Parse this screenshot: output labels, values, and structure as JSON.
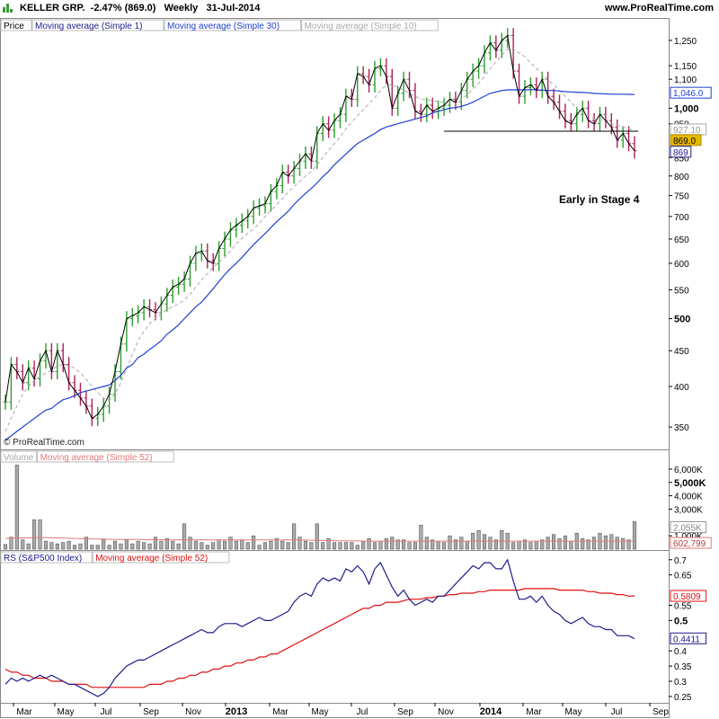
{
  "header": {
    "ticker": "KELLER GRP.",
    "change": "-2.47% (869.0)",
    "period": "Weekly",
    "date": "31-Jul-2014",
    "site": "www.ProRealTime.com"
  },
  "annotation": "Early in Stage 4",
  "watermark": "© ProRealTime.com",
  "colors": {
    "up_bar": "#2e9e2e",
    "down_bar": "#b0205a",
    "line_price": "#000000",
    "ma30": "#1f3fd0",
    "ma10": "#aaaaaa",
    "volume_bar": "#aaaaaa",
    "volume_ma": "#e07a7a",
    "rs_line": "#1c1c8c",
    "rs_ma": "#e01010",
    "price_tag": "#e8b800"
  },
  "chart_data": [
    {
      "type": "line",
      "panel": "price",
      "legend": [
        "Price",
        "Moving average (Simple 1)",
        "Moving average (Simple 30)",
        "Moving average (Simple 10)"
      ],
      "y_scale": "log",
      "ylim": [
        330,
        1330
      ],
      "y_ticks": [
        "1,250",
        "1,150",
        "1,100",
        "1,000",
        "950",
        "850",
        "800",
        "750",
        "700",
        "650",
        "600",
        "550",
        "500",
        "450",
        "400",
        "350"
      ],
      "y_tick_values": [
        1250,
        1150,
        1100,
        1000,
        950,
        850,
        800,
        750,
        700,
        650,
        600,
        550,
        500,
        450,
        400,
        350
      ],
      "y_tick_bold": [
        "1,000",
        "500"
      ],
      "tags": [
        {
          "label": "1,046.0",
          "value": 1046,
          "style": "ma30"
        },
        {
          "label": "927.10",
          "value": 927.1,
          "style": "ma10"
        },
        {
          "label": "869.0",
          "value": 869,
          "style": "price"
        },
        {
          "label": "869",
          "value": 869,
          "style": "plain"
        }
      ],
      "support_level": 927,
      "x_ticks": [
        "Mar",
        "May",
        "Jul",
        "Sep",
        "Nov",
        "2013",
        "Mar",
        "May",
        "Jul",
        "Sep",
        "Nov",
        "2014",
        "Mar",
        "May",
        "Jul",
        "Sep"
      ],
      "x_tick_bold": [
        "2013",
        "2014"
      ],
      "close": [
        380,
        430,
        420,
        405,
        425,
        410,
        435,
        450,
        420,
        450,
        430,
        405,
        395,
        385,
        375,
        360,
        365,
        375,
        390,
        420,
        460,
        500,
        505,
        510,
        520,
        515,
        510,
        525,
        540,
        555,
        560,
        570,
        600,
        620,
        625,
        605,
        600,
        630,
        650,
        670,
        680,
        690,
        700,
        720,
        725,
        730,
        760,
        775,
        810,
        800,
        820,
        840,
        860,
        840,
        920,
        950,
        930,
        960,
        980,
        1040,
        1030,
        1120,
        1110,
        1080,
        1140,
        1150,
        1110,
        1000,
        1050,
        1100,
        1060,
        990,
        980,
        1010,
        990,
        1000,
        1010,
        1030,
        1020,
        1060,
        1100,
        1130,
        1150,
        1200,
        1240,
        1210,
        1250,
        1270,
        1130,
        1040,
        1070,
        1080,
        1060,
        1100,
        1040,
        1020,
        990,
        960,
        950,
        980,
        1000,
        960,
        950,
        980,
        960,
        940,
        900,
        920,
        890,
        869
      ],
      "ma30": [
        335,
        340,
        345,
        350,
        355,
        360,
        365,
        370,
        372,
        378,
        383,
        385,
        388,
        392,
        394,
        396,
        398,
        400,
        402,
        408,
        415,
        425,
        430,
        440,
        445,
        452,
        458,
        465,
        475,
        482,
        490,
        500,
        510,
        520,
        528,
        540,
        552,
        565,
        578,
        590,
        600,
        612,
        625,
        638,
        650,
        662,
        675,
        688,
        700,
        712,
        728,
        742,
        755,
        768,
        782,
        798,
        812,
        830,
        845,
        860,
        875,
        890,
        900,
        910,
        920,
        932,
        940,
        945,
        950,
        955,
        960,
        965,
        970,
        975,
        985,
        990,
        995,
        1000,
        1002,
        1006,
        1012,
        1020,
        1030,
        1040,
        1050,
        1055,
        1060,
        1062,
        1062,
        1062,
        1062,
        1063,
        1062,
        1061,
        1060,
        1060,
        1058,
        1056,
        1055,
        1054,
        1053,
        1052,
        1050,
        1049,
        1048,
        1047,
        1047,
        1047,
        1046.5,
        1046
      ],
      "ma10": [
        345,
        360,
        375,
        390,
        400,
        408,
        413,
        418,
        422,
        428,
        430,
        428,
        425,
        418,
        410,
        400,
        392,
        385,
        382,
        390,
        405,
        425,
        445,
        465,
        480,
        492,
        500,
        508,
        515,
        520,
        525,
        532,
        542,
        555,
        568,
        580,
        592,
        602,
        612,
        625,
        640,
        652,
        662,
        672,
        685,
        700,
        714,
        728,
        742,
        758,
        772,
        786,
        800,
        812,
        830,
        850,
        870,
        890,
        910,
        935,
        955,
        975,
        995,
        1015,
        1035,
        1060,
        1080,
        1080,
        1070,
        1062,
        1050,
        1040,
        1030,
        1028,
        1025,
        1022,
        1020,
        1018,
        1020,
        1030,
        1045,
        1065,
        1085,
        1110,
        1140,
        1165,
        1190,
        1215,
        1215,
        1200,
        1185,
        1160,
        1140,
        1120,
        1098,
        1080,
        1060,
        1040,
        1020,
        1000,
        985,
        975,
        965,
        960,
        955,
        950,
        945,
        940,
        935,
        927.1
      ]
    },
    {
      "type": "bar",
      "panel": "volume",
      "legend": [
        "Volume",
        "Moving average (Simple 52)"
      ],
      "y_ticks": [
        "6,000K",
        "5,000K",
        "4,000K",
        "3,000K",
        "1,000K"
      ],
      "y_tick_values": [
        6000,
        5000,
        4000,
        3000,
        1000
      ],
      "y_tick_bold": [
        "5,000K"
      ],
      "ylim": [
        0,
        6400
      ],
      "tags": [
        {
          "label": "2,055K",
          "value": 2055,
          "style": "volume"
        },
        {
          "label": "602,799",
          "value": 603,
          "style": "volume_ma"
        }
      ],
      "values": [
        350,
        900,
        6300,
        700,
        400,
        2200,
        2200,
        600,
        500,
        400,
        500,
        600,
        300,
        400,
        900,
        300,
        300,
        700,
        300,
        600,
        400,
        700,
        400,
        600,
        500,
        400,
        900,
        600,
        800,
        600,
        400,
        1900,
        900,
        600,
        500,
        300,
        500,
        700,
        600,
        900,
        600,
        700,
        500,
        1000,
        300,
        500,
        600,
        800,
        600,
        500,
        1900,
        900,
        600,
        500,
        1900,
        500,
        800,
        500,
        500,
        500,
        500,
        300,
        600,
        800,
        500,
        600,
        800,
        900,
        700,
        700,
        500,
        500,
        1800,
        900,
        700,
        600,
        500,
        1000,
        700,
        900,
        600,
        1200,
        1400,
        1100,
        900,
        700,
        1400,
        1200,
        500,
        600,
        700,
        500,
        600,
        700,
        900,
        1100,
        800,
        1000,
        600,
        1200,
        800,
        700,
        900,
        1200,
        1000,
        1100,
        900,
        800,
        700,
        2055
      ],
      "ma": [
        800,
        820,
        830,
        840,
        850,
        860,
        870,
        860,
        850,
        840,
        830,
        820,
        800,
        790,
        780,
        770,
        760,
        750,
        740,
        730,
        720,
        720,
        720,
        720,
        715,
        710,
        705,
        700,
        700,
        700,
        700,
        700,
        700,
        700,
        700,
        700,
        695,
        690,
        690,
        690,
        690,
        690,
        690,
        690,
        690,
        690,
        690,
        690,
        690,
        690,
        690,
        690,
        680,
        670,
        660,
        650,
        640,
        630,
        625,
        620,
        615,
        610,
        605,
        600,
        600,
        600,
        600,
        600,
        600,
        600,
        600,
        600,
        600,
        600,
        600,
        600,
        600,
        600,
        600,
        600,
        600,
        600,
        600,
        600,
        600,
        600,
        600,
        600,
        600,
        600,
        600,
        600,
        600,
        600,
        600,
        600,
        600,
        600,
        600,
        600,
        600,
        600,
        600,
        602,
        602,
        602,
        602,
        602,
        602,
        603
      ]
    },
    {
      "type": "line",
      "panel": "rs",
      "legend": [
        "RS (S&P500 Index)",
        "Moving average (Simple 52)"
      ],
      "ylim": [
        0.235,
        0.72
      ],
      "y_ticks": [
        "0.7",
        "0.65",
        "0.55",
        "0.5",
        "0.4",
        "0.35",
        "0.3",
        "0.25"
      ],
      "y_tick_values": [
        0.7,
        0.65,
        0.55,
        0.5,
        0.4,
        0.35,
        0.3,
        0.25
      ],
      "y_tick_bold": [
        "0.5"
      ],
      "tags": [
        {
          "label": "0.5809",
          "value": 0.5809,
          "style": "rs_ma"
        },
        {
          "label": "0.4411",
          "value": 0.4411,
          "style": "rs"
        }
      ],
      "rs": [
        0.29,
        0.31,
        0.3,
        0.31,
        0.3,
        0.31,
        0.32,
        0.31,
        0.32,
        0.31,
        0.3,
        0.29,
        0.29,
        0.28,
        0.27,
        0.26,
        0.25,
        0.26,
        0.28,
        0.31,
        0.33,
        0.35,
        0.36,
        0.37,
        0.37,
        0.38,
        0.39,
        0.4,
        0.41,
        0.42,
        0.43,
        0.44,
        0.45,
        0.46,
        0.47,
        0.46,
        0.46,
        0.48,
        0.49,
        0.49,
        0.49,
        0.48,
        0.49,
        0.5,
        0.51,
        0.5,
        0.5,
        0.51,
        0.52,
        0.53,
        0.56,
        0.58,
        0.59,
        0.58,
        0.62,
        0.64,
        0.63,
        0.64,
        0.63,
        0.67,
        0.66,
        0.68,
        0.66,
        0.62,
        0.67,
        0.69,
        0.65,
        0.61,
        0.58,
        0.6,
        0.57,
        0.55,
        0.56,
        0.57,
        0.56,
        0.58,
        0.58,
        0.6,
        0.62,
        0.64,
        0.66,
        0.68,
        0.67,
        0.69,
        0.69,
        0.67,
        0.67,
        0.7,
        0.63,
        0.57,
        0.57,
        0.58,
        0.56,
        0.58,
        0.55,
        0.53,
        0.52,
        0.5,
        0.49,
        0.5,
        0.51,
        0.49,
        0.48,
        0.48,
        0.47,
        0.47,
        0.45,
        0.45,
        0.45,
        0.44
      ],
      "ma": [
        0.34,
        0.33,
        0.33,
        0.32,
        0.32,
        0.31,
        0.31,
        0.31,
        0.3,
        0.3,
        0.3,
        0.29,
        0.29,
        0.29,
        0.29,
        0.28,
        0.28,
        0.28,
        0.28,
        0.28,
        0.28,
        0.28,
        0.28,
        0.28,
        0.28,
        0.29,
        0.29,
        0.29,
        0.3,
        0.3,
        0.31,
        0.31,
        0.32,
        0.32,
        0.33,
        0.33,
        0.34,
        0.34,
        0.35,
        0.35,
        0.36,
        0.36,
        0.37,
        0.37,
        0.38,
        0.38,
        0.39,
        0.39,
        0.4,
        0.41,
        0.42,
        0.43,
        0.44,
        0.45,
        0.46,
        0.47,
        0.48,
        0.49,
        0.5,
        0.51,
        0.52,
        0.53,
        0.54,
        0.54,
        0.55,
        0.55,
        0.56,
        0.56,
        0.56,
        0.565,
        0.57,
        0.57,
        0.57,
        0.575,
        0.575,
        0.58,
        0.58,
        0.585,
        0.585,
        0.59,
        0.59,
        0.59,
        0.595,
        0.595,
        0.6,
        0.6,
        0.6,
        0.6,
        0.6,
        0.6,
        0.605,
        0.605,
        0.605,
        0.605,
        0.605,
        0.605,
        0.6,
        0.6,
        0.6,
        0.6,
        0.6,
        0.595,
        0.595,
        0.59,
        0.59,
        0.59,
        0.585,
        0.585,
        0.58,
        0.5809
      ]
    }
  ]
}
